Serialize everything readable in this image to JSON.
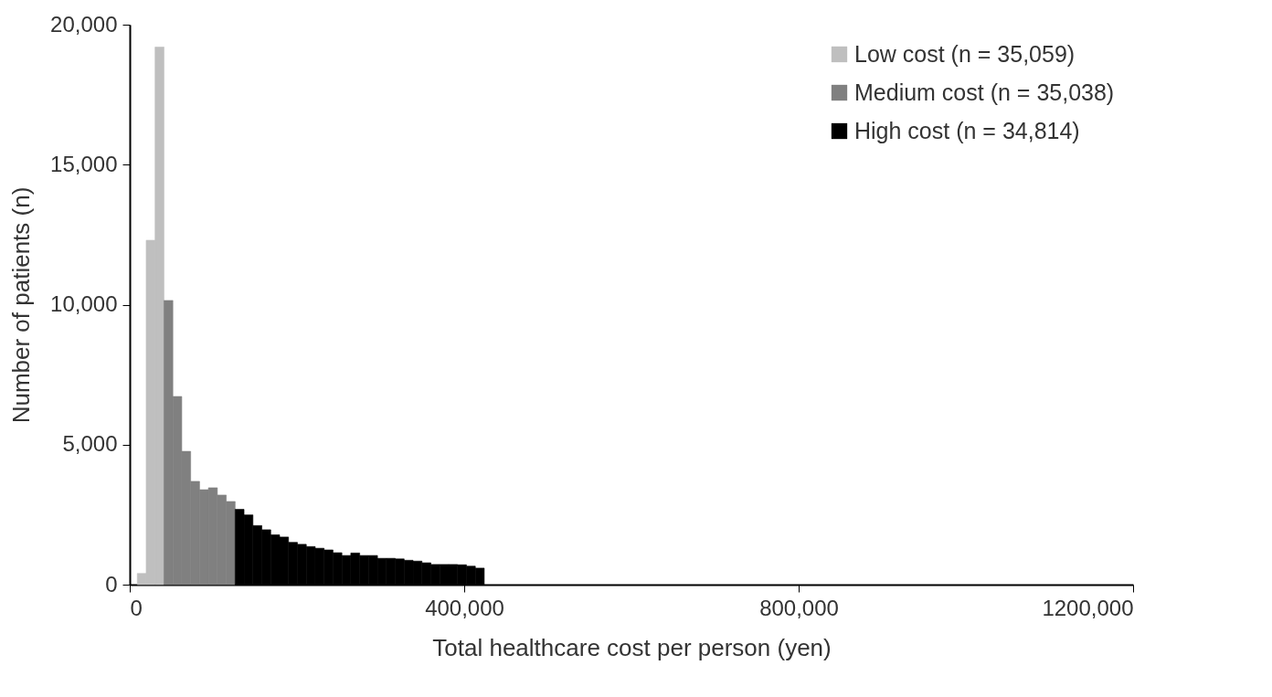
{
  "chart_data": {
    "type": "histogram",
    "xlabel": "Total healthcare cost per person (yen)",
    "ylabel": "Number of patients (n)",
    "bins": [
      9000,
      19640,
      30280,
      40920,
      51560,
      62200,
      72840,
      83480,
      94120,
      104760,
      115400,
      126040,
      136680,
      147320,
      157960,
      168600,
      179240,
      189880,
      200520,
      211160,
      221800,
      232440,
      243080,
      253720,
      264360,
      275000,
      285640,
      296280,
      306920,
      317560,
      328200,
      338840,
      349480,
      360120,
      370760,
      381400,
      392040,
      402680,
      413320,
      423960
    ],
    "series": [
      {
        "name": "Low cost (n = 35,059)",
        "color": "#bfbfbf",
        "values": [
          400,
          12300,
          19200,
          null,
          null,
          null,
          null,
          null,
          null,
          null,
          null,
          null,
          null,
          null,
          null,
          null,
          null,
          null,
          null,
          null,
          null,
          null,
          null,
          null,
          null,
          null,
          null,
          null,
          null,
          null,
          null,
          null,
          null,
          null,
          null,
          null,
          null,
          null,
          null
        ]
      },
      {
        "name": "Medium cost (n = 35,038)",
        "color": "#808080",
        "values": [
          null,
          null,
          null,
          10150,
          6720,
          4760,
          3690,
          3390,
          3460,
          3200,
          2970,
          null,
          null,
          null,
          null,
          null,
          null,
          null,
          null,
          null,
          null,
          null,
          null,
          null,
          null,
          null,
          null,
          null,
          null,
          null,
          null,
          null,
          null,
          null,
          null,
          null,
          null,
          null,
          null
        ]
      },
      {
        "name": "High cost (n = 34,814)",
        "color": "#000000",
        "values": [
          null,
          null,
          null,
          null,
          null,
          null,
          null,
          null,
          null,
          null,
          null,
          2690,
          2490,
          2110,
          1960,
          1780,
          1700,
          1510,
          1440,
          1360,
          1300,
          1240,
          1140,
          1040,
          1130,
          1040,
          1040,
          940,
          940,
          920,
          870,
          840,
          780,
          720,
          720,
          720,
          710,
          660,
          590
        ]
      }
    ],
    "xlim": [
      0,
      1200000
    ],
    "xticks": [
      0,
      {
        "value": 400000,
        "label": "400,000"
      },
      {
        "value": 800000,
        "label": "800,000"
      },
      {
        "value": 1200000,
        "label": "1200,000"
      }
    ],
    "ylim": [
      0,
      20000
    ],
    "yticks": [
      0,
      {
        "value": 5000,
        "label": "5,000"
      },
      {
        "value": 10000,
        "label": "10,000"
      },
      {
        "value": 15000,
        "label": "15,000"
      },
      {
        "value": 20000,
        "label": "20,000"
      }
    ],
    "grid": false,
    "legend": "top right"
  }
}
